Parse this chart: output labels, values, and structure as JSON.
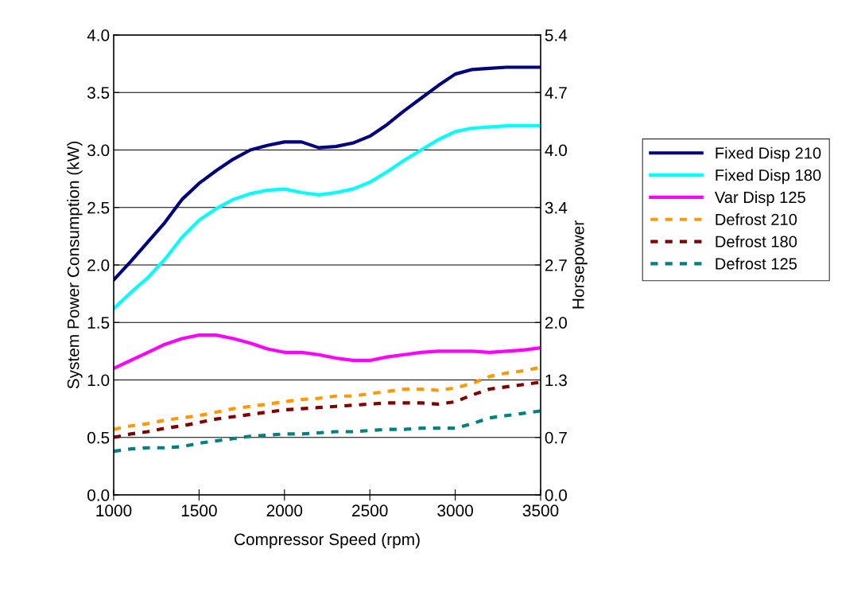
{
  "chart_data": {
    "type": "line",
    "xlabel": "Compressor Speed (rpm)",
    "ylabel": "System Power Consumption (kW)",
    "y2label": "Horsepower",
    "x": [
      1000,
      1100,
      1200,
      1300,
      1400,
      1500,
      1600,
      1700,
      1800,
      1900,
      2000,
      2100,
      2200,
      2300,
      2400,
      2500,
      2600,
      2700,
      2800,
      2900,
      3000,
      3100,
      3200,
      3300,
      3400,
      3500
    ],
    "xlim": [
      1000,
      3500
    ],
    "xticks": [
      1000,
      1500,
      2000,
      2500,
      3000,
      3500
    ],
    "ylim": [
      0,
      4
    ],
    "yticks": [
      {
        "value": 0,
        "label": "0.0"
      },
      {
        "value": 0.5,
        "label": "0.5"
      },
      {
        "value": 1,
        "label": "1.0"
      },
      {
        "value": 1.5,
        "label": "1.5"
      },
      {
        "value": 2,
        "label": "2.0"
      },
      {
        "value": 2.5,
        "label": "2.5"
      },
      {
        "value": 3,
        "label": "3.0"
      },
      {
        "value": 3.5,
        "label": "3.5"
      },
      {
        "value": 4,
        "label": "4.0"
      }
    ],
    "y2lim": [
      0,
      5.364
    ],
    "y2ticks": [
      {
        "value": 0,
        "label": "0.0"
      },
      {
        "value": 0.6705,
        "label": "0.7"
      },
      {
        "value": 1.341,
        "label": "1.3"
      },
      {
        "value": 2.0115,
        "label": "2.0"
      },
      {
        "value": 2.682,
        "label": "2.7"
      },
      {
        "value": 3.3525,
        "label": "3.4"
      },
      {
        "value": 4.023,
        "label": "4.0"
      },
      {
        "value": 4.6935,
        "label": "4.7"
      },
      {
        "value": 5.364,
        "label": "5.4"
      }
    ],
    "grid": "y",
    "legend": "right",
    "series": [
      {
        "name": "Fixed Disp 210",
        "color": "#000080",
        "line_style": "solid",
        "values": [
          1.87,
          2.03,
          2.2,
          2.37,
          2.57,
          2.71,
          2.82,
          2.92,
          3.0,
          3.04,
          3.07,
          3.07,
          3.02,
          3.03,
          3.06,
          3.12,
          3.22,
          3.34,
          3.45,
          3.56,
          3.66,
          3.7,
          3.71,
          3.72,
          3.72,
          3.72
        ]
      },
      {
        "name": "Fixed Disp 180",
        "color": "#00ffff",
        "line_style": "solid",
        "values": [
          1.62,
          1.76,
          1.89,
          2.05,
          2.24,
          2.39,
          2.49,
          2.57,
          2.62,
          2.65,
          2.66,
          2.63,
          2.61,
          2.63,
          2.66,
          2.72,
          2.81,
          2.91,
          3.0,
          3.09,
          3.16,
          3.19,
          3.2,
          3.21,
          3.21,
          3.21
        ]
      },
      {
        "name": "Var Disp 125",
        "color": "#ff00ff",
        "line_style": "solid",
        "values": [
          1.1,
          1.17,
          1.24,
          1.31,
          1.36,
          1.39,
          1.39,
          1.36,
          1.32,
          1.27,
          1.24,
          1.24,
          1.22,
          1.19,
          1.17,
          1.17,
          1.2,
          1.22,
          1.24,
          1.25,
          1.25,
          1.25,
          1.24,
          1.25,
          1.26,
          1.28
        ]
      },
      {
        "name": "Defrost 210",
        "color": "#ff9900",
        "line_style": "dashed",
        "values": [
          0.57,
          0.6,
          0.62,
          0.65,
          0.67,
          0.69,
          0.72,
          0.75,
          0.77,
          0.79,
          0.81,
          0.83,
          0.84,
          0.86,
          0.86,
          0.88,
          0.9,
          0.92,
          0.92,
          0.91,
          0.93,
          0.97,
          1.03,
          1.06,
          1.08,
          1.11
        ]
      },
      {
        "name": "Defrost 180",
        "color": "#800000",
        "line_style": "dashed",
        "values": [
          0.5,
          0.53,
          0.55,
          0.58,
          0.6,
          0.63,
          0.66,
          0.68,
          0.7,
          0.72,
          0.74,
          0.75,
          0.76,
          0.77,
          0.78,
          0.79,
          0.8,
          0.8,
          0.8,
          0.79,
          0.81,
          0.87,
          0.92,
          0.94,
          0.96,
          0.98
        ]
      },
      {
        "name": "Defrost 125",
        "color": "#008080",
        "line_style": "dashed",
        "values": [
          0.38,
          0.4,
          0.41,
          0.41,
          0.42,
          0.45,
          0.47,
          0.49,
          0.51,
          0.52,
          0.53,
          0.53,
          0.54,
          0.55,
          0.55,
          0.56,
          0.57,
          0.57,
          0.58,
          0.58,
          0.58,
          0.62,
          0.67,
          0.69,
          0.71,
          0.73
        ]
      }
    ]
  }
}
